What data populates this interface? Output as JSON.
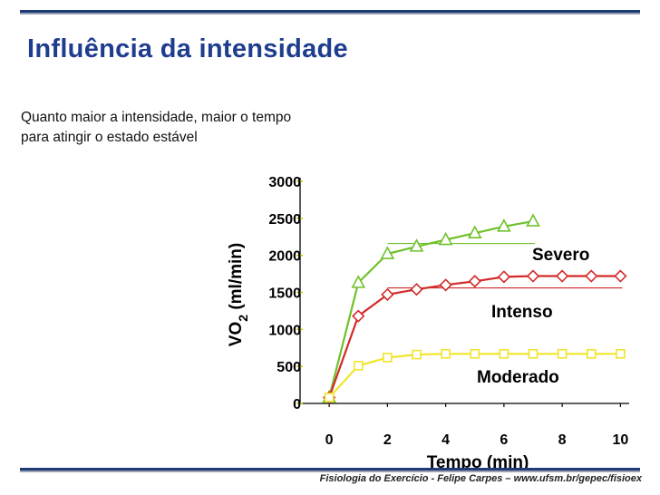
{
  "slide": {
    "title": "Influência da intensidade",
    "subtitle": "Quanto maior a intensidade, maior o tempo para atingir o estado estável",
    "footer": "Fisiologia do Exercício - Felipe Carpes – www.ufsm.br/gepec/fisioex"
  },
  "chart_data": {
    "type": "line",
    "title": "",
    "xlabel": "Tempo (min)",
    "ylabel": "VO2 (ml/min)",
    "ylabel_main": "VO",
    "ylabel_sub": "2",
    "ylabel_tail": " (ml/min)",
    "xlim": [
      -1,
      10.3
    ],
    "ylim": [
      0,
      3000
    ],
    "xticks": [
      0,
      2,
      4,
      6,
      8,
      10
    ],
    "yticks": [
      0,
      500,
      1000,
      1500,
      2000,
      2500,
      3000
    ],
    "grid": false,
    "series": [
      {
        "name": "Severo",
        "color": "#6fc12a",
        "marker": "triangle",
        "x": [
          0,
          1,
          2,
          3,
          4,
          5,
          6,
          7
        ],
        "y": [
          80,
          1630,
          2020,
          2120,
          2210,
          2300,
          2390,
          2460
        ],
        "plateau": 2160,
        "plateau_x": [
          2,
          7
        ]
      },
      {
        "name": "Intenso",
        "color": "#d42a2a",
        "marker": "diamond",
        "x": [
          0,
          1,
          2,
          3,
          4,
          5,
          6,
          7,
          8,
          9,
          10
        ],
        "y": [
          80,
          1180,
          1470,
          1540,
          1600,
          1650,
          1710,
          1720,
          1720,
          1720,
          1720
        ],
        "plateau": 1560,
        "plateau_x": [
          2,
          10
        ]
      },
      {
        "name": "Moderado",
        "color": "#f2e52a",
        "marker": "square",
        "x": [
          0,
          1,
          2,
          3,
          4,
          5,
          6,
          7,
          8,
          9,
          10
        ],
        "y": [
          80,
          510,
          620,
          660,
          670,
          670,
          670,
          670,
          670,
          670,
          670
        ]
      }
    ]
  }
}
